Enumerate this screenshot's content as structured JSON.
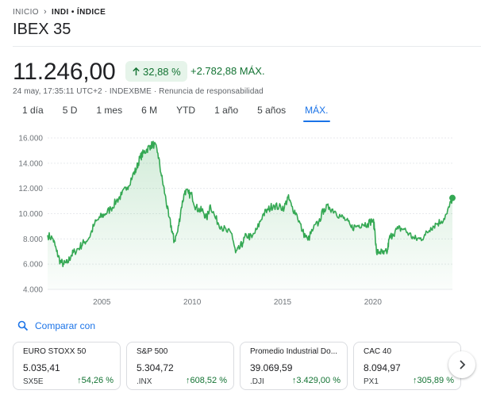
{
  "breadcrumb": {
    "home": "INICIO",
    "current": "INDI • ÍNDICE"
  },
  "title": "IBEX 35",
  "price": "11.246,00",
  "change": {
    "percent": "32,88 %",
    "absolute": "+2.782,88 MÁX."
  },
  "meta": "24 may, 17:35:11 UTC+2 · INDEXBME · Renuncia de responsabilidad",
  "tabs": [
    "1 día",
    "5 D",
    "1 mes",
    "6 M",
    "YTD",
    "1 año",
    "5 años",
    "MÁX."
  ],
  "active_tab": 7,
  "compare_label": "Comparar con",
  "cards": [
    {
      "name": "EURO STOXX 50",
      "value": "5.035,41",
      "ticker": "SX5E",
      "change": "54,26 %"
    },
    {
      "name": "S&P 500",
      "value": "5.304,72",
      "ticker": ".INX",
      "change": "608,52 %"
    },
    {
      "name": "Promedio Industrial Do...",
      "value": "39.069,59",
      "ticker": ".DJI",
      "change": "3.429,00 %"
    },
    {
      "name": "CAC 40",
      "value": "8.094,97",
      "ticker": "PX1",
      "change": "305,89 %"
    }
  ],
  "colors": {
    "up": "#137333",
    "line": "#34a853",
    "accent": "#1a73e8"
  },
  "chart_data": {
    "type": "area",
    "y_ticks": [
      "16.000",
      "14.000",
      "12.000",
      "10.000",
      "8.000",
      "6.000",
      "4.000"
    ],
    "x_ticks": [
      "2005",
      "2010",
      "2015",
      "2020"
    ],
    "ylim": [
      4000,
      16000
    ],
    "xlim": [
      2002.0,
      2024.4
    ],
    "grid": true,
    "series": [
      {
        "x": [
          2002.0,
          2002.3,
          2002.5,
          2002.7,
          2002.9,
          2003.1,
          2003.3,
          2003.5,
          2003.8,
          2004.0,
          2004.3,
          2004.6,
          2004.9,
          2005.2,
          2005.5,
          2005.8,
          2006.1,
          2006.4,
          2006.7,
          2006.9,
          2007.1,
          2007.3,
          2007.5,
          2007.7,
          2007.9,
          2008.1,
          2008.3,
          2008.5,
          2008.7,
          2008.9,
          2009.0,
          2009.2,
          2009.4,
          2009.6,
          2009.8,
          2010.0,
          2010.2,
          2010.4,
          2010.6,
          2010.8,
          2011.0,
          2011.3,
          2011.6,
          2011.9,
          2012.2,
          2012.4,
          2012.6,
          2012.8,
          2013.0,
          2013.3,
          2013.6,
          2013.9,
          2014.2,
          2014.5,
          2014.8,
          2015.1,
          2015.3,
          2015.5,
          2015.8,
          2016.1,
          2016.4,
          2016.7,
          2017.0,
          2017.3,
          2017.6,
          2017.9,
          2018.2,
          2018.5,
          2018.8,
          2019.1,
          2019.4,
          2019.7,
          2020.0,
          2020.1,
          2020.2,
          2020.4,
          2020.6,
          2020.8,
          2020.9,
          2021.1,
          2021.4,
          2021.7,
          2022.0,
          2022.3,
          2022.6,
          2022.9,
          2023.2,
          2023.5,
          2023.8,
          2024.1,
          2024.4
        ],
        "y": [
          8300,
          8000,
          7000,
          6200,
          6000,
          6100,
          6700,
          7000,
          7400,
          7700,
          8100,
          9200,
          9700,
          10000,
          10400,
          11000,
          11500,
          12100,
          13000,
          13500,
          14400,
          14800,
          15100,
          15400,
          15500,
          14800,
          13000,
          11500,
          9800,
          8600,
          7800,
          8600,
          10500,
          11800,
          11600,
          11400,
          10500,
          10300,
          10200,
          9600,
          10700,
          9600,
          9000,
          8600,
          8400,
          6900,
          7200,
          7700,
          8300,
          8100,
          8800,
          9900,
          10300,
          10700,
          10500,
          10500,
          11300,
          10600,
          9900,
          8600,
          7900,
          8800,
          9300,
          10400,
          10500,
          10200,
          9800,
          9500,
          8900,
          9000,
          9200,
          9200,
          9500,
          8800,
          6900,
          7000,
          6800,
          7000,
          8000,
          8400,
          8800,
          8800,
          8400,
          8000,
          8000,
          8300,
          8900,
          9200,
          9400,
          10000,
          11246
        ]
      }
    ]
  }
}
